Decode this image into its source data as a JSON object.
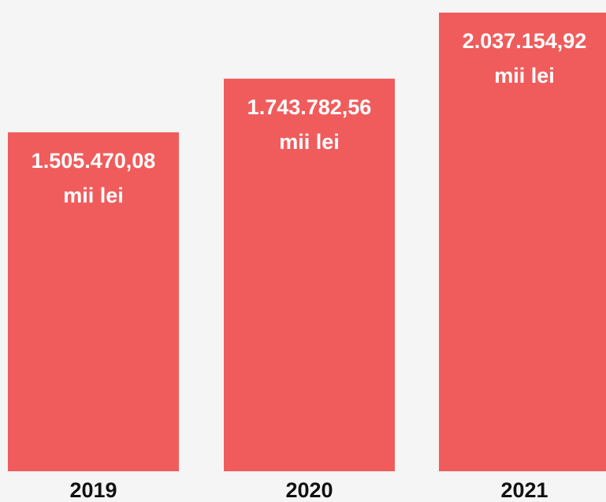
{
  "chart_data": {
    "type": "bar",
    "categories": [
      "2019",
      "2020",
      "2021"
    ],
    "values": [
      1505470.08,
      1743782.56,
      2037154.92
    ],
    "value_labels": [
      "1.505.470,08",
      "1.743.782,56",
      "2.037.154,92"
    ],
    "unit": "mii lei",
    "color": "#f05c5c"
  }
}
